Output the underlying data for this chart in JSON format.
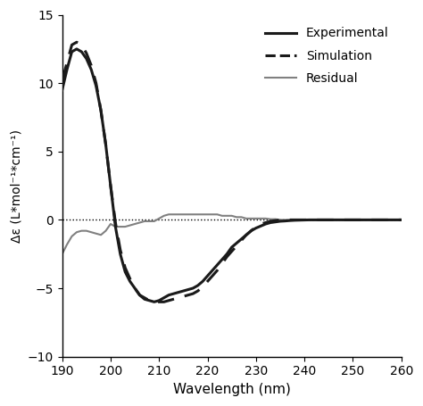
{
  "xlim": [
    190,
    260
  ],
  "ylim": [
    -10,
    15
  ],
  "xlabel": "Wavelength (nm)",
  "ylabel": "Δε (L*mol⁻¹*cm⁻¹)",
  "xticks": [
    190,
    200,
    210,
    220,
    230,
    240,
    250,
    260
  ],
  "yticks": [
    -10,
    -5,
    0,
    5,
    10,
    15
  ],
  "experimental_color": "#1a1a1a",
  "simulation_color": "#1a1a1a",
  "residual_color": "#808080",
  "background_color": "#ffffff",
  "legend_labels": [
    "Experimental",
    "Simulation",
    "Residual"
  ],
  "experimental_x": [
    190,
    191,
    192,
    193,
    194,
    195,
    196,
    197,
    198,
    199,
    200,
    201,
    202,
    203,
    204,
    205,
    206,
    207,
    208,
    209,
    210,
    211,
    212,
    213,
    214,
    215,
    216,
    217,
    218,
    219,
    220,
    221,
    222,
    223,
    224,
    225,
    226,
    227,
    228,
    229,
    230,
    231,
    232,
    233,
    234,
    235,
    236,
    237,
    238,
    239,
    240,
    241,
    242,
    243,
    244,
    245,
    246,
    247,
    248,
    249,
    250,
    251,
    252,
    253,
    254,
    255,
    256,
    257,
    258,
    259,
    260
  ],
  "experimental_y": [
    9.5,
    11.0,
    12.3,
    12.5,
    12.3,
    11.8,
    11.0,
    9.8,
    8.0,
    5.5,
    2.5,
    -0.5,
    -2.5,
    -3.8,
    -4.5,
    -5.0,
    -5.5,
    -5.8,
    -5.9,
    -6.0,
    -5.9,
    -5.7,
    -5.5,
    -5.4,
    -5.3,
    -5.2,
    -5.1,
    -5.0,
    -4.8,
    -4.5,
    -4.1,
    -3.7,
    -3.3,
    -2.9,
    -2.5,
    -2.0,
    -1.7,
    -1.4,
    -1.1,
    -0.8,
    -0.6,
    -0.45,
    -0.3,
    -0.2,
    -0.15,
    -0.1,
    -0.08,
    -0.05,
    -0.03,
    -0.02,
    -0.01,
    0.0,
    0.0,
    0.0,
    0.0,
    0.0,
    0.0,
    0.0,
    0.0,
    0.0,
    0.0,
    0.0,
    0.0,
    0.0,
    0.0,
    0.0,
    0.0,
    0.0,
    0.0,
    0.0,
    0.0
  ],
  "simulation_x": [
    190,
    191,
    192,
    193,
    194,
    195,
    196,
    197,
    198,
    199,
    200,
    201,
    202,
    203,
    204,
    205,
    206,
    207,
    208,
    209,
    210,
    211,
    212,
    213,
    214,
    215,
    216,
    217,
    218,
    219,
    220,
    221,
    222,
    223,
    224,
    225,
    226,
    227,
    228,
    229,
    230,
    231,
    232,
    233,
    234,
    235,
    236,
    237,
    238,
    239,
    240,
    241,
    242,
    243,
    244,
    245,
    246,
    247,
    248,
    249,
    250,
    251,
    252,
    253,
    254,
    255,
    256,
    257,
    258,
    259,
    260
  ],
  "simulation_y": [
    10.2,
    11.5,
    12.8,
    13.0,
    12.8,
    12.2,
    11.3,
    10.0,
    8.0,
    5.5,
    2.5,
    -0.2,
    -2.2,
    -3.5,
    -4.3,
    -5.0,
    -5.5,
    -5.7,
    -5.9,
    -6.0,
    -6.0,
    -6.0,
    -5.9,
    -5.8,
    -5.7,
    -5.6,
    -5.5,
    -5.4,
    -5.2,
    -4.9,
    -4.5,
    -4.1,
    -3.7,
    -3.2,
    -2.7,
    -2.3,
    -1.9,
    -1.5,
    -1.1,
    -0.8,
    -0.5,
    -0.3,
    -0.2,
    -0.1,
    -0.05,
    0.0,
    0.0,
    0.0,
    0.0,
    0.0,
    0.0,
    0.0,
    0.0,
    0.0,
    0.0,
    0.0,
    0.0,
    0.0,
    0.0,
    0.0,
    0.0,
    0.0,
    0.0,
    0.0,
    0.0,
    0.0,
    0.0,
    0.0,
    0.0,
    0.0,
    0.0
  ],
  "residual_x": [
    190,
    191,
    192,
    193,
    194,
    195,
    196,
    197,
    198,
    199,
    200,
    201,
    202,
    203,
    204,
    205,
    206,
    207,
    208,
    209,
    210,
    211,
    212,
    213,
    214,
    215,
    216,
    217,
    218,
    219,
    220,
    221,
    222,
    223,
    224,
    225,
    226,
    227,
    228,
    229,
    230,
    231,
    232,
    233,
    234,
    235,
    236,
    237,
    238,
    239,
    240,
    241,
    242,
    243,
    244,
    245,
    246,
    247,
    248,
    249,
    250,
    251,
    252,
    253,
    254,
    255,
    256,
    257,
    258,
    259,
    260
  ],
  "residual_y": [
    -2.5,
    -1.8,
    -1.2,
    -0.9,
    -0.8,
    -0.8,
    -0.9,
    -1.0,
    -1.1,
    -0.8,
    -0.3,
    -0.5,
    -0.5,
    -0.5,
    -0.4,
    -0.3,
    -0.2,
    -0.1,
    -0.1,
    -0.1,
    0.1,
    0.3,
    0.4,
    0.4,
    0.4,
    0.4,
    0.4,
    0.4,
    0.4,
    0.4,
    0.4,
    0.4,
    0.4,
    0.3,
    0.3,
    0.3,
    0.2,
    0.2,
    0.1,
    0.1,
    0.1,
    0.1,
    0.1,
    0.05,
    0.05,
    0.0,
    0.0,
    0.0,
    0.0,
    0.0,
    0.0,
    0.0,
    0.0,
    0.0,
    0.0,
    0.0,
    0.0,
    0.0,
    0.0,
    0.0,
    0.0,
    0.0,
    0.0,
    0.0,
    0.0,
    0.0,
    0.0,
    0.0,
    0.0,
    0.0,
    0.0
  ]
}
